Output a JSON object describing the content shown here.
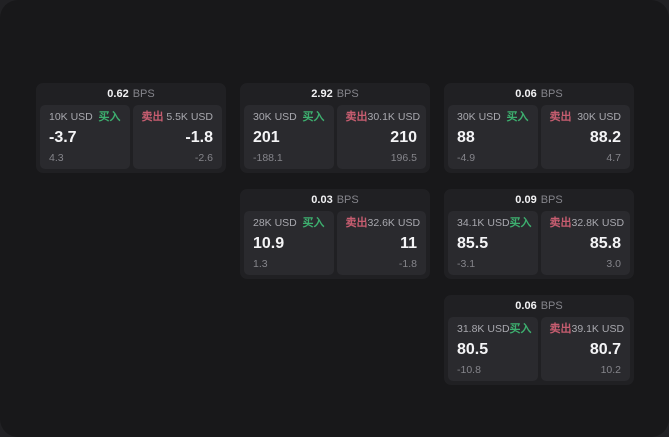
{
  "labels": {
    "bps_suffix": "BPS",
    "buy": "买入",
    "sell": "卖出"
  },
  "colors": {
    "buy": "#3daf6f",
    "sell": "#c75d70"
  },
  "cards": [
    {
      "bps": "0.62",
      "row": 1,
      "col": 1,
      "buy": {
        "size": "10K USD",
        "price": "-3.7",
        "delta": "4.3"
      },
      "sell": {
        "size": "5.5K USD",
        "price": "-1.8",
        "delta": "-2.6"
      }
    },
    {
      "bps": "2.92",
      "row": 1,
      "col": 2,
      "buy": {
        "size": "30K USD",
        "price": "201",
        "delta": "-188.1"
      },
      "sell": {
        "size": "30.1K USD",
        "price": "210",
        "delta": "196.5"
      }
    },
    {
      "bps": "0.06",
      "row": 1,
      "col": 3,
      "buy": {
        "size": "30K USD",
        "price": "88",
        "delta": "-4.9"
      },
      "sell": {
        "size": "30K USD",
        "price": "88.2",
        "delta": "4.7"
      }
    },
    {
      "bps": "0.03",
      "row": 2,
      "col": 2,
      "buy": {
        "size": "28K USD",
        "price": "10.9",
        "delta": "1.3"
      },
      "sell": {
        "size": "32.6K USD",
        "price": "11",
        "delta": "-1.8"
      }
    },
    {
      "bps": "0.09",
      "row": 2,
      "col": 3,
      "buy": {
        "size": "34.1K USD",
        "price": "85.5",
        "delta": "-3.1"
      },
      "sell": {
        "size": "32.8K USD",
        "price": "85.8",
        "delta": "3.0"
      }
    },
    {
      "bps": "0.06",
      "row": 3,
      "col": 3,
      "buy": {
        "size": "31.8K USD",
        "price": "80.5",
        "delta": "-10.8"
      },
      "sell": {
        "size": "39.1K USD",
        "price": "80.7",
        "delta": "10.2"
      }
    }
  ]
}
